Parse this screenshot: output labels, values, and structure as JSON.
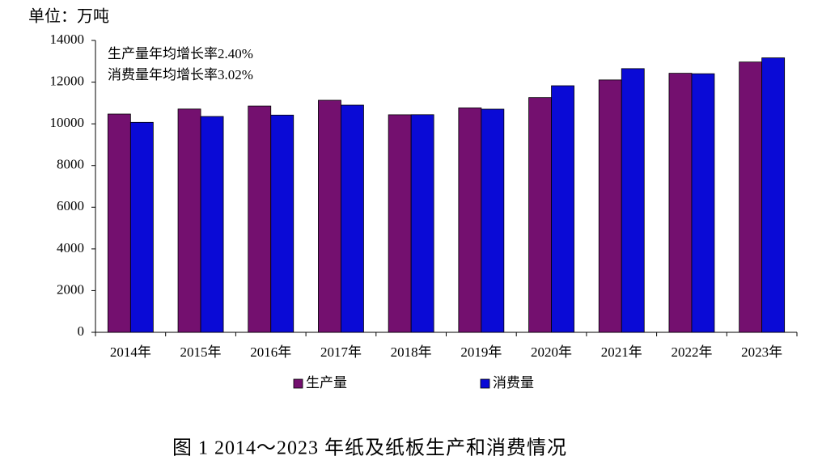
{
  "chart_data": {
    "type": "bar",
    "title": "图 1 2014～2023 年纸及纸板生产和消费情况",
    "unit_label": "单位：万吨",
    "annotations": [
      "生产量年均增长率2.40%",
      "消费量年均增长率3.02%"
    ],
    "categories": [
      "2014年",
      "2015年",
      "2016年",
      "2017年",
      "2018年",
      "2019年",
      "2020年",
      "2021年",
      "2022年",
      "2023年"
    ],
    "series": [
      {
        "name": "生产量",
        "color": "#74106f",
        "values": [
          10470,
          10710,
          10855,
          11130,
          10435,
          10765,
          11260,
          12105,
          12425,
          12965
        ]
      },
      {
        "name": "消费量",
        "color": "#0a0ad6",
        "values": [
          10071,
          10352,
          10419,
          10897,
          10439,
          10704,
          11827,
          12648,
          12403,
          13165
        ]
      }
    ],
    "ylim": [
      0,
      14000
    ],
    "yticks": [
      0,
      2000,
      4000,
      6000,
      8000,
      10000,
      12000,
      14000
    ],
    "grid": false,
    "legend": "bottom"
  }
}
